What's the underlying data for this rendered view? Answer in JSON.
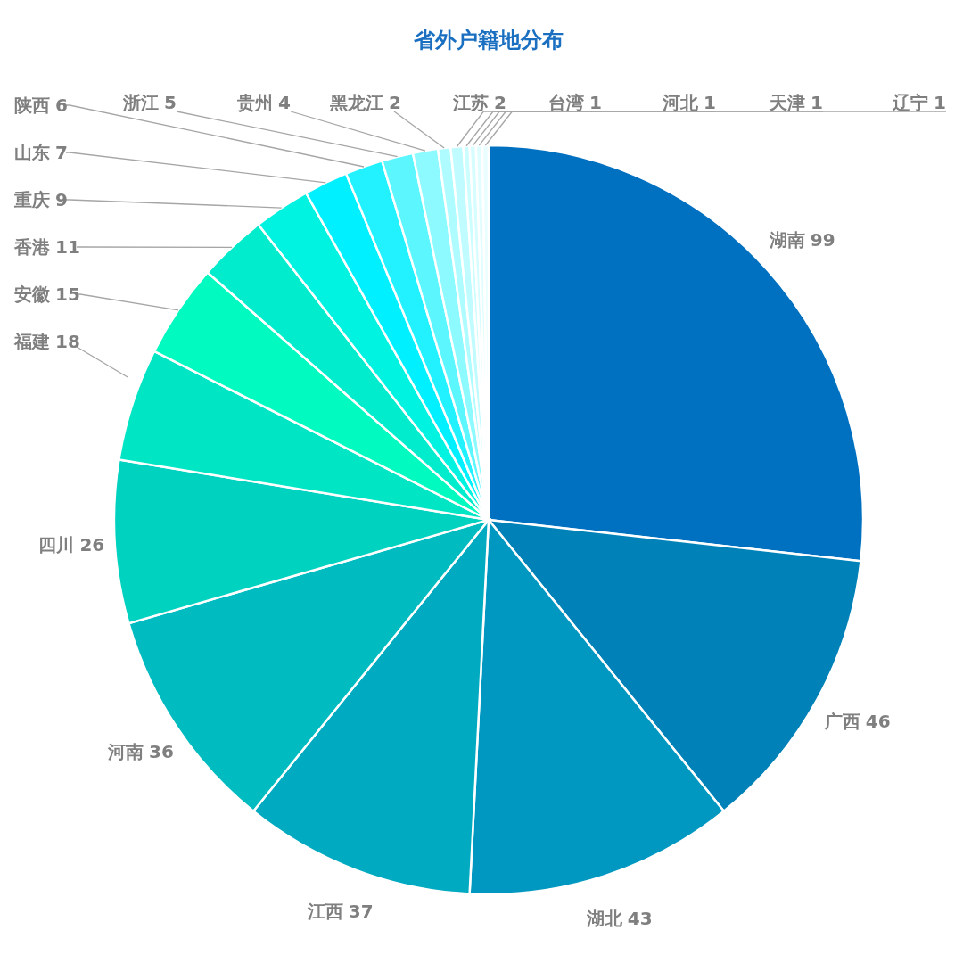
{
  "chart_data": {
    "type": "pie",
    "title": "省外户籍地分布",
    "data_labels": true,
    "categories": [
      "湖南",
      "广西",
      "湖北",
      "江西",
      "河南",
      "四川",
      "福建",
      "安徽",
      "香港",
      "重庆",
      "山东",
      "陕西",
      "浙江",
      "贵州",
      "黑龙江",
      "江苏",
      "台湾",
      "河北",
      "天津",
      "辽宁"
    ],
    "values": [
      99,
      46,
      43,
      37,
      36,
      26,
      18,
      15,
      11,
      9,
      7,
      6,
      5,
      4,
      2,
      2,
      1,
      1,
      1,
      1
    ],
    "colors": [
      "#0070c0",
      "#0082b8",
      "#0098c0",
      "#00aac0",
      "#00bcc0",
      "#00d2c0",
      "#00e6c4",
      "#00fac0",
      "#00eccc",
      "#00f2e0",
      "#00f0ff",
      "#22f2ff",
      "#5cf6ff",
      "#8cfaff",
      "#aefcff",
      "#c0fcff",
      "#ccfdff",
      "#d6fdff",
      "#e0feff",
      "#eafeff"
    ]
  }
}
